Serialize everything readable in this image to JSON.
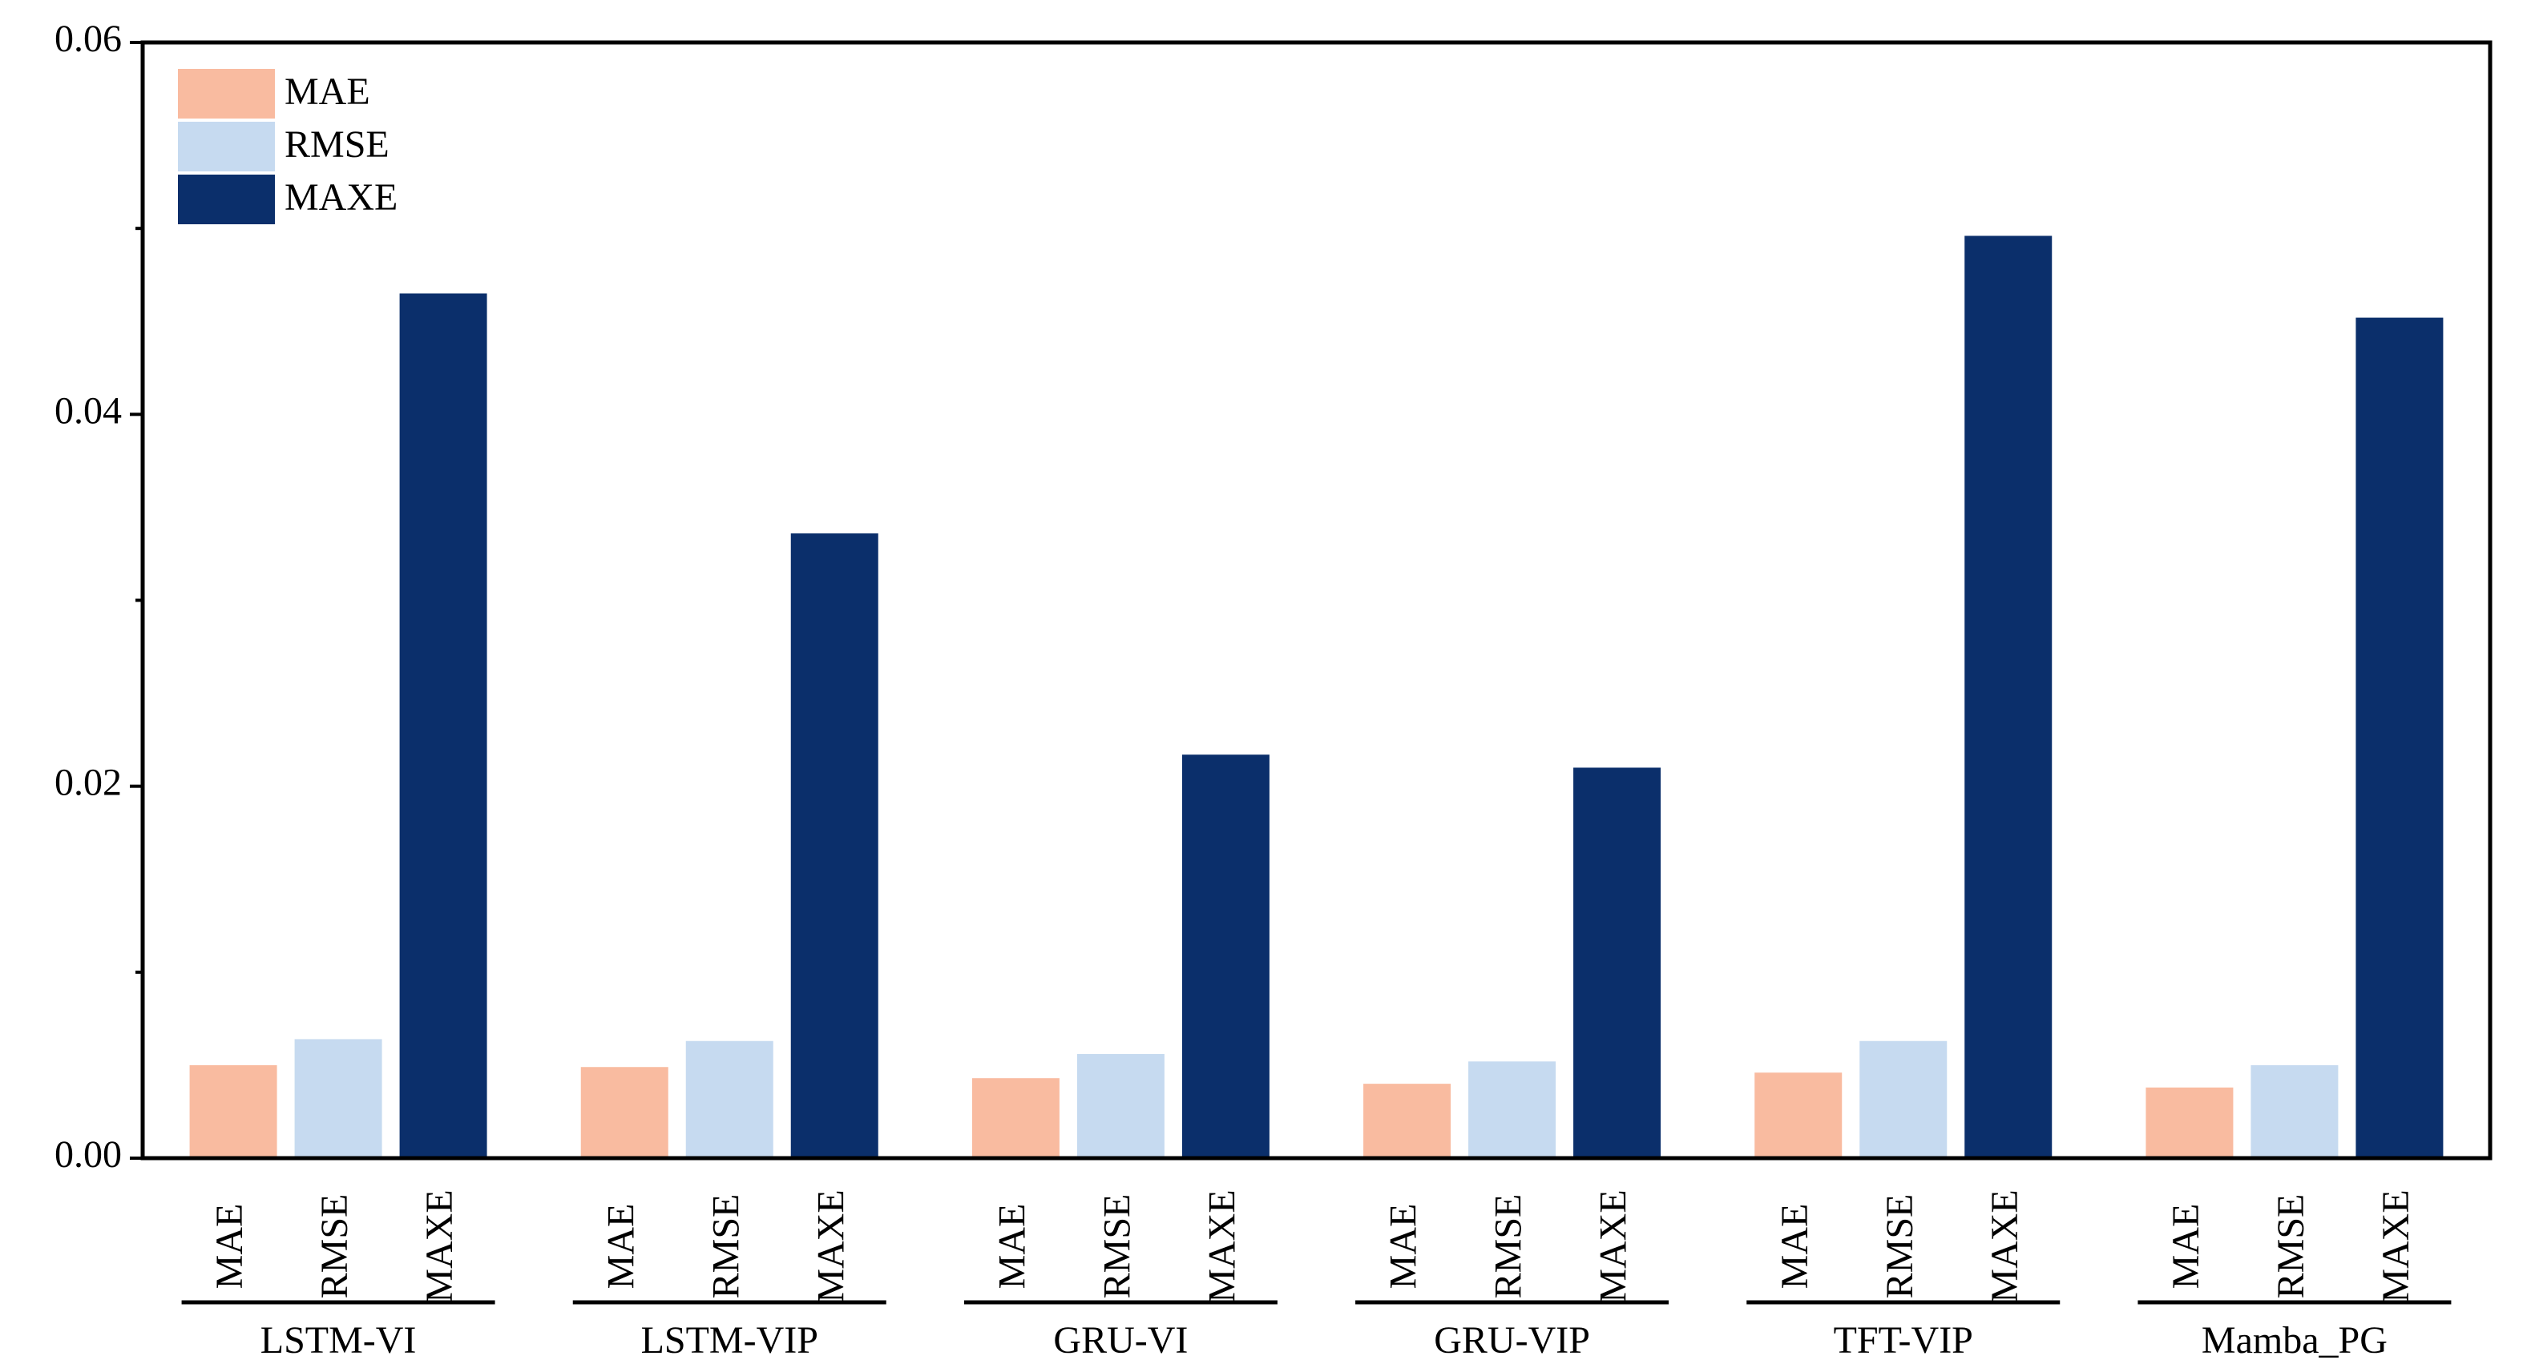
{
  "chart_data": {
    "type": "bar",
    "categories": [
      "LSTM-VI",
      "LSTM-VIP",
      "GRU-VI",
      "GRU-VIP",
      "TFT-VIP",
      "Mamba_PG"
    ],
    "series": [
      {
        "name": "MAE",
        "color": "#f9bba0",
        "values": [
          0.005,
          0.0049,
          0.0043,
          0.004,
          0.0046,
          0.0038
        ]
      },
      {
        "name": "RMSE",
        "color": "#c6daf0",
        "values": [
          0.0064,
          0.0063,
          0.0056,
          0.0052,
          0.0063,
          0.005
        ]
      },
      {
        "name": "MAXE",
        "color": "#0b2f6b",
        "values": [
          0.0465,
          0.0336,
          0.0217,
          0.021,
          0.0496,
          0.0452
        ]
      }
    ],
    "ylim": [
      0,
      0.06
    ],
    "yticks": [
      {
        "value": 0,
        "label": "0.00"
      },
      0.02,
      0.04,
      0.06
    ],
    "yminor_ticks": [
      0.01,
      0.03,
      0.05
    ],
    "legend": "upper-left"
  }
}
